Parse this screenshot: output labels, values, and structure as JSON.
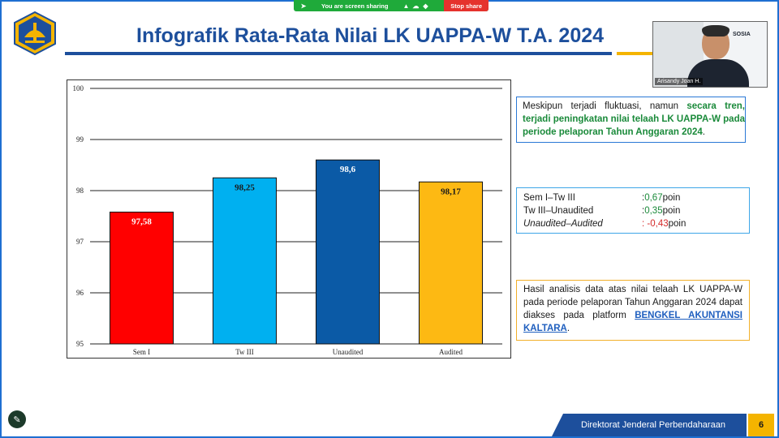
{
  "share_bar": {
    "status_text": "You are screen sharing",
    "stop_label": "Stop share"
  },
  "slide": {
    "title": "Infografik Rata-Rata Nilai LK UAPPA-W T.A. 2024",
    "page_number": "6",
    "footer_text": "Direktorat Jenderal Perbendaharaan"
  },
  "webcam": {
    "participant_name": "Arisandy Joan H."
  },
  "notes": {
    "note1": {
      "part1": "Meskipun terjadi fluktuasi, namun ",
      "highlight": "secara tren, terjadi peningkatan nilai telaah LK UAPPA-W pada periode pelaporan Tahun Anggaran 2024",
      "part2": "."
    },
    "diffs": [
      {
        "label": "Sem I–Tw III",
        "sep": ": ",
        "value": "0,67",
        "unit": " poin"
      },
      {
        "label": "Tw III–Unaudited",
        "sep": ": ",
        "value": "0,35",
        "unit": " poin"
      },
      {
        "label": "Unaudited–Audited",
        "sep": ": -",
        "value": "0,43",
        "unit": " poin"
      }
    ],
    "note3": {
      "text": "Hasil analisis data atas nilai telaah LK UAPPA-W pada periode pelaporan Tahun Anggaran 2024 dapat diakses pada platform ",
      "link": "BENGKEL AKUNTANSI KALTARA",
      "end": "."
    }
  },
  "chart_data": {
    "type": "bar",
    "categories": [
      "Sem I",
      "Tw III",
      "Unaudited",
      "Audited"
    ],
    "values": [
      97.58,
      98.25,
      98.6,
      98.17
    ],
    "value_labels": [
      "97,58",
      "98,25",
      "98,6",
      "98,17"
    ],
    "colors": [
      "#ff0000",
      "#00b0f0",
      "#0b5aa6",
      "#fdb913"
    ],
    "label_colors": [
      "#ffffff",
      "#1a1a1a",
      "#ffffff",
      "#1a1a1a"
    ],
    "ylim": [
      95,
      100
    ],
    "yticks": [
      "95",
      "96",
      "97",
      "98",
      "99",
      "100"
    ],
    "grid": true,
    "title": "",
    "xlabel": "",
    "ylabel": ""
  }
}
